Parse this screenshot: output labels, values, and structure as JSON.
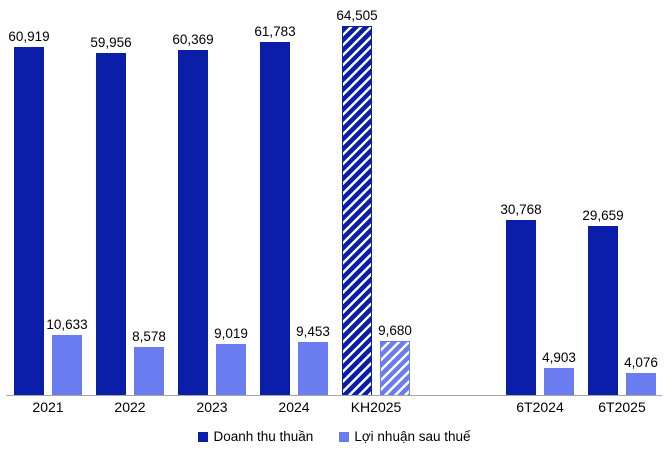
{
  "chart_data": {
    "type": "bar",
    "title": "",
    "xlabel": "",
    "ylabel": "",
    "categories": [
      "2021",
      "2022",
      "2023",
      "2024",
      "KH2025",
      "6T2024",
      "6T2025"
    ],
    "series": [
      {
        "name": "Doanh thu thuần",
        "color": "#0A1EAA",
        "values": [
          60919,
          59956,
          60369,
          61783,
          64505,
          30768,
          29659
        ]
      },
      {
        "name": "Lợi nhuận sau thuế",
        "color": "#6B7CF0",
        "values": [
          10633,
          8578,
          9019,
          9453,
          9680,
          4903,
          4076
        ]
      }
    ],
    "value_labels": [
      [
        "60,919",
        "59,956",
        "60,369",
        "61,783",
        "64,505",
        "30,768",
        "29,659"
      ],
      [
        "10,633",
        "8,578",
        "9,019",
        "9,453",
        "9,680",
        "4,903",
        "4,076"
      ]
    ],
    "hatched_categories": [
      "KH2025"
    ],
    "gap_after_category": "KH2025",
    "ylim": [
      0,
      64505
    ],
    "grid": false,
    "y_axis_visible": false,
    "legend_position": "bottom",
    "axis_line_color": "#a6a6a6",
    "background": "#FFFFFF",
    "label_color": "#000000"
  }
}
